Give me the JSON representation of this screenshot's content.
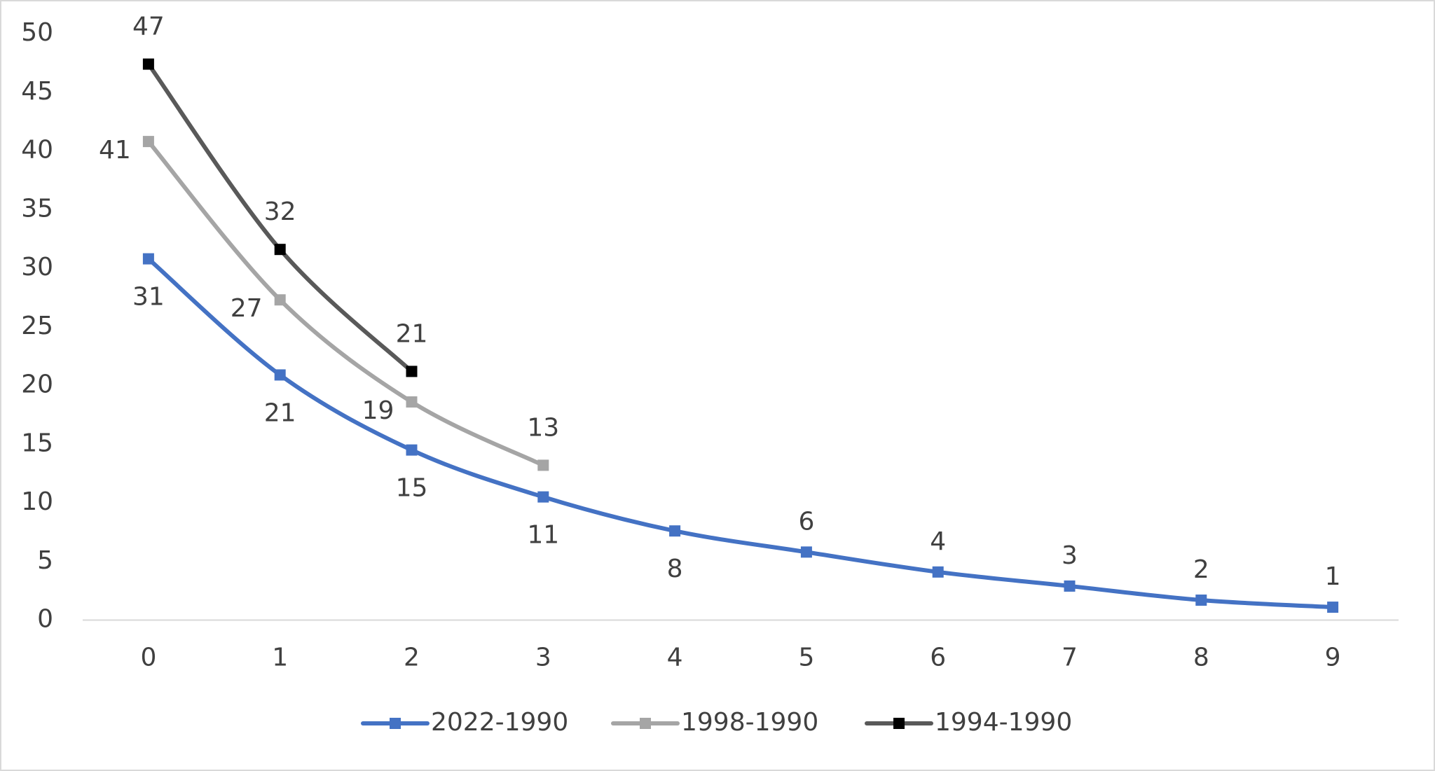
{
  "chart_data": {
    "type": "line",
    "x": [
      0,
      1,
      2,
      3,
      4,
      5,
      6,
      7,
      8,
      9
    ],
    "xlim": [
      -0.5,
      9.5
    ],
    "xticks": [
      0,
      1,
      2,
      3,
      4,
      5,
      6,
      7,
      8,
      9
    ],
    "ylim": [
      0,
      50
    ],
    "yticks": [
      0,
      5,
      10,
      15,
      20,
      25,
      30,
      35,
      40,
      45,
      50
    ],
    "grid": false,
    "legend": "bottom",
    "series": [
      {
        "name": "2022-1990",
        "color": "#4472c4",
        "values": [
          30.8,
          20.9,
          14.5,
          10.5,
          7.6,
          5.8,
          4.1,
          2.9,
          1.7,
          1.1
        ],
        "value_labels": [
          "31",
          "21",
          "15",
          "11",
          "8",
          "6",
          "4",
          "3",
          "2",
          "1"
        ]
      },
      {
        "name": "1998-1990",
        "color": "#a5a5a5",
        "values": [
          40.8,
          27.3,
          18.6,
          13.2,
          null,
          null,
          null,
          null,
          null,
          null
        ],
        "value_labels": [
          "41",
          "27",
          "19",
          "13",
          null,
          null,
          null,
          null,
          null,
          null
        ]
      },
      {
        "name": "1994-1990",
        "color": "#595959",
        "marker_color": "#000000",
        "values": [
          47.4,
          31.6,
          21.2,
          null,
          null,
          null,
          null,
          null,
          null,
          null
        ],
        "value_labels": [
          "47",
          "32",
          "21",
          null,
          null,
          null,
          null,
          null,
          null,
          null
        ]
      }
    ]
  }
}
